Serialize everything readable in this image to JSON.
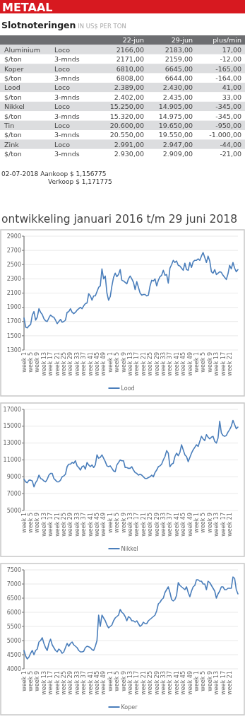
{
  "chart_data": [
    {
      "type": "other",
      "title": "METAAL",
      "subtitle": "Slotnoteringen IN US$ PER TON",
      "categories": [
        null,
        null,
        "22-jun",
        "29-jun",
        "plus/min"
      ],
      "annotations": [
        "Aluminium",
        "Loco",
        "2166,00",
        "2183,00",
        "17,00",
        "$/ton",
        "3-mnds",
        "2171,00",
        "2159,00",
        "-12,00",
        "Koper",
        "Loco",
        "6810,00",
        "6645,00",
        "-165,00",
        "$/ton",
        "3-mnds",
        "6808,00",
        "6644,00",
        "-164,00",
        "Lood",
        "Loco",
        "2.389,00",
        "2.430,00",
        "41,00",
        "$/ton",
        "3-mnds",
        "2.402,00",
        "2.435,00",
        "33,00",
        "Nikkel",
        "Loco",
        "15.250,00",
        "14.905,00",
        "-345,00",
        "$/ton",
        "3-mnds",
        "15.320,00",
        "14.975,00",
        "-345,00",
        "Tin",
        "Loco",
        "20.600,00",
        "19.650,00",
        "-950,00",
        "$/ton",
        "3-mnds",
        "20.550,00",
        "19.550,00",
        "-1.000,00",
        "Zink",
        "Loco",
        "2.991,00",
        "2.947,00",
        "-44,00",
        "$/ton",
        "3-mnds",
        "2.930,00",
        "2.909,00",
        "-21,00",
        "02-07-2018 Aankoop $  1,156775",
        "Verkoop $  1,171775",
        "ontwikkeling januari 2016 t/m 29 juni 2018"
      ]
    },
    {
      "type": "line",
      "categories": [
        "week 1",
        null,
        null,
        null,
        "week 5",
        null,
        null,
        null,
        "week 9",
        null,
        null,
        null,
        "week 13",
        null,
        null,
        null,
        "week 17",
        null,
        null,
        null,
        "week 21",
        null,
        null,
        null,
        "week 25",
        null,
        null,
        null,
        "week 29",
        null,
        null,
        null,
        "week 33",
        null,
        null,
        null,
        "week 37",
        null,
        null,
        null,
        "week 41",
        null,
        null,
        null,
        "week 45",
        null,
        null,
        null,
        "week 49",
        null,
        null,
        null,
        "week 1",
        null,
        null,
        null,
        "week 5",
        null,
        null,
        null,
        "week 9",
        null,
        null,
        null,
        "week 13",
        null,
        null,
        null,
        "week 17",
        null,
        null,
        null,
        "week 21",
        null,
        null,
        null,
        "week 25",
        null,
        null,
        null,
        "week 29",
        null,
        null,
        null,
        "week 33",
        null,
        null,
        null,
        "week 37",
        null,
        null,
        null,
        "week 41",
        null,
        null,
        null,
        "week 45",
        null,
        null,
        null,
        "week 49",
        null,
        null,
        null,
        "week 1",
        null,
        null,
        null,
        "week 5",
        null,
        null,
        null,
        "week 9",
        null,
        null,
        null,
        "week 13",
        null,
        null,
        null,
        "week 17",
        null,
        null,
        null,
        "week 21",
        null,
        null,
        null,
        null,
        null
      ],
      "series": [
        {
          "name": "Lood",
          "color": "#4a7ebb",
          "values": [
            1750,
            1620,
            1610,
            1640,
            1660,
            1790,
            1840,
            1720,
            1760,
            1880,
            1830,
            1800,
            1740,
            1710,
            1700,
            1750,
            1790,
            1770,
            1760,
            1720,
            1670,
            1700,
            1730,
            1690,
            1700,
            1720,
            1830,
            1840,
            1880,
            1830,
            1810,
            1830,
            1860,
            1880,
            1900,
            1880,
            1920,
            1950,
            1960,
            2090,
            2060,
            2000,
            2060,
            2060,
            2120,
            2180,
            2200,
            2440,
            2300,
            2340,
            2100,
            2000,
            2050,
            2200,
            2320,
            2380,
            2330,
            2360,
            2430,
            2280,
            2270,
            2250,
            2230,
            2300,
            2340,
            2300,
            2250,
            2150,
            2260,
            2180,
            2100,
            2070,
            2080,
            2080,
            2060,
            2070,
            2200,
            2280,
            2270,
            2300,
            2200,
            2280,
            2330,
            2350,
            2420,
            2350,
            2360,
            2240,
            2450,
            2500,
            2560,
            2530,
            2550,
            2490,
            2480,
            2450,
            2420,
            2520,
            2430,
            2420,
            2530,
            2460,
            2540,
            2560,
            2560,
            2580,
            2560,
            2620,
            2670,
            2600,
            2530,
            2620,
            2550,
            2400,
            2380,
            2430,
            2360,
            2380,
            2400,
            2390,
            2350,
            2320,
            2290,
            2370,
            2490,
            2440,
            2530,
            2450,
            2400,
            2430
          ]
        }
      ],
      "ylim": [
        1300,
        2900
      ],
      "yticks": [
        1300,
        1500,
        1700,
        1900,
        2100,
        2300,
        2500,
        2700,
        2900
      ],
      "grid": "y",
      "legend": "bottom"
    },
    {
      "type": "line",
      "categories": [
        "week 1",
        null,
        null,
        null,
        "week 5",
        null,
        null,
        null,
        "week 9",
        null,
        null,
        null,
        "week 13",
        null,
        null,
        null,
        "week 17",
        null,
        null,
        null,
        "week 21",
        null,
        null,
        null,
        "week 25",
        null,
        null,
        null,
        "week 29",
        null,
        null,
        null,
        "week 33",
        null,
        null,
        null,
        "week 37",
        null,
        null,
        null,
        "week 41",
        null,
        null,
        null,
        "week 45",
        null,
        null,
        null,
        "week 49",
        null,
        null,
        null,
        "week 1",
        null,
        null,
        null,
        "week 5",
        null,
        null,
        null,
        "week 9",
        null,
        null,
        null,
        "week 13",
        null,
        null,
        null,
        "week 17",
        null,
        null,
        null,
        "week 21",
        null,
        null,
        null,
        "week 25",
        null,
        null,
        null,
        "week 29",
        null,
        null,
        null,
        "week 33",
        null,
        null,
        null,
        "week 37",
        null,
        null,
        null,
        "week 41",
        null,
        null,
        null,
        "week 45",
        null,
        null,
        null,
        "week 49",
        null,
        null,
        null,
        "week 1",
        null,
        null,
        null,
        "week 5",
        null,
        null,
        null,
        "week 9",
        null,
        null,
        null,
        "week 13",
        null,
        null,
        null,
        "week 17",
        null,
        null,
        null,
        "week 21",
        null,
        null,
        null,
        null,
        null
      ],
      "series": [
        {
          "name": "Nikkel",
          "color": "#4a7ebb",
          "values": [
            8700,
            8400,
            8300,
            8600,
            8600,
            8500,
            7800,
            8300,
            8600,
            9200,
            8800,
            8700,
            8500,
            8400,
            8700,
            9200,
            9400,
            9400,
            8800,
            8600,
            8400,
            8400,
            8600,
            9000,
            9100,
            9300,
            10200,
            10500,
            10500,
            10700,
            10600,
            10900,
            10300,
            10100,
            9800,
            10200,
            10300,
            9900,
            10700,
            10400,
            10200,
            10400,
            10100,
            10400,
            11600,
            11200,
            11300,
            11600,
            11200,
            10800,
            10300,
            10200,
            10300,
            10000,
            9700,
            9600,
            10400,
            10700,
            11000,
            10900,
            10900,
            10100,
            10100,
            10000,
            10000,
            10200,
            9800,
            9500,
            9400,
            9200,
            9300,
            9200,
            9000,
            8800,
            8800,
            8900,
            9000,
            9200,
            9000,
            9500,
            9800,
            10200,
            10300,
            10500,
            11000,
            11400,
            12100,
            11800,
            10200,
            10500,
            10600,
            11400,
            11800,
            11500,
            11900,
            12800,
            12200,
            11600,
            11400,
            10800,
            11300,
            11800,
            12200,
            12500,
            12800,
            12600,
            13200,
            13800,
            13500,
            13300,
            14000,
            13700,
            13500,
            13700,
            13800,
            13200,
            13000,
            13600,
            15600,
            14200,
            13900,
            13800,
            13900,
            14300,
            14600,
            15000,
            15700,
            15200,
            14700,
            14900
          ]
        }
      ],
      "ylim": [
        5000,
        17000
      ],
      "yticks": [
        5000,
        7000,
        9000,
        11000,
        13000,
        15000,
        17000
      ],
      "grid": "y",
      "legend": "bottom"
    },
    {
      "type": "line",
      "categories": [
        "week 1",
        null,
        null,
        null,
        "week 5",
        null,
        null,
        null,
        "week 9",
        null,
        null,
        null,
        "week 13",
        null,
        null,
        null,
        "week 17",
        null,
        null,
        null,
        "week 21",
        null,
        null,
        null,
        "week 25",
        null,
        null,
        null,
        "week 29",
        null,
        null,
        null,
        "week 33",
        null,
        null,
        null,
        "week 37",
        null,
        null,
        null,
        "week 41",
        null,
        null,
        null,
        "week 45",
        null,
        null,
        null,
        "week 49",
        null,
        null,
        null,
        "week 1",
        null,
        null,
        null,
        "week 5",
        null,
        null,
        null,
        "week 9",
        null,
        null,
        null,
        "week 13",
        null,
        null,
        null,
        "week 17",
        null,
        null,
        null,
        "week 21",
        null,
        null,
        null,
        "week 25",
        null,
        null,
        null,
        "week 29",
        null,
        null,
        null,
        "week 33",
        null,
        null,
        null,
        "week 37",
        null,
        null,
        null,
        "week 41",
        null,
        null,
        null,
        "week 45",
        null,
        null,
        null,
        "week 49",
        null,
        null,
        null,
        "week 1",
        null,
        null,
        null,
        "week 5",
        null,
        null,
        null,
        "week 9",
        null,
        null,
        null,
        "week 13",
        null,
        null,
        null,
        "week 17",
        null,
        null,
        null,
        "week 21",
        null,
        null,
        null,
        null,
        null
      ],
      "series": [
        {
          "name": "Koper",
          "color": "#4a7ebb",
          "values": [
            4650,
            4450,
            4350,
            4420,
            4550,
            4650,
            4500,
            4650,
            4700,
            4950,
            5000,
            5100,
            4900,
            4750,
            4650,
            4900,
            5050,
            4850,
            4750,
            4650,
            4600,
            4700,
            4650,
            4550,
            4600,
            4750,
            4900,
            4800,
            4900,
            4950,
            4850,
            4800,
            4750,
            4650,
            4600,
            4600,
            4620,
            4750,
            4800,
            4780,
            4750,
            4680,
            4650,
            4800,
            5000,
            5900,
            5500,
            5900,
            5800,
            5700,
            5550,
            5450,
            5500,
            5550,
            5700,
            5800,
            5850,
            5900,
            6100,
            6000,
            5950,
            5850,
            5700,
            5850,
            5800,
            5700,
            5700,
            5650,
            5700,
            5600,
            5500,
            5550,
            5650,
            5600,
            5600,
            5700,
            5750,
            5800,
            5850,
            5900,
            6050,
            6300,
            6350,
            6450,
            6500,
            6700,
            6800,
            6900,
            6700,
            6450,
            6400,
            6450,
            6600,
            7050,
            6950,
            6900,
            6850,
            6800,
            6900,
            6700,
            6550,
            6750,
            6900,
            6950,
            7150,
            7150,
            7100,
            7100,
            7000,
            7000,
            6800,
            7100,
            7050,
            6950,
            6850,
            6750,
            6500,
            6650,
            6750,
            6900,
            6900,
            6800,
            6800,
            6850,
            6850,
            6850,
            7250,
            7200,
            6800,
            6650
          ]
        }
      ],
      "ylim": [
        4000,
        7500
      ],
      "yticks": [
        4000,
        4500,
        5000,
        5500,
        6000,
        6500,
        7000,
        7500
      ],
      "grid": "y",
      "legend": "bottom"
    }
  ]
}
